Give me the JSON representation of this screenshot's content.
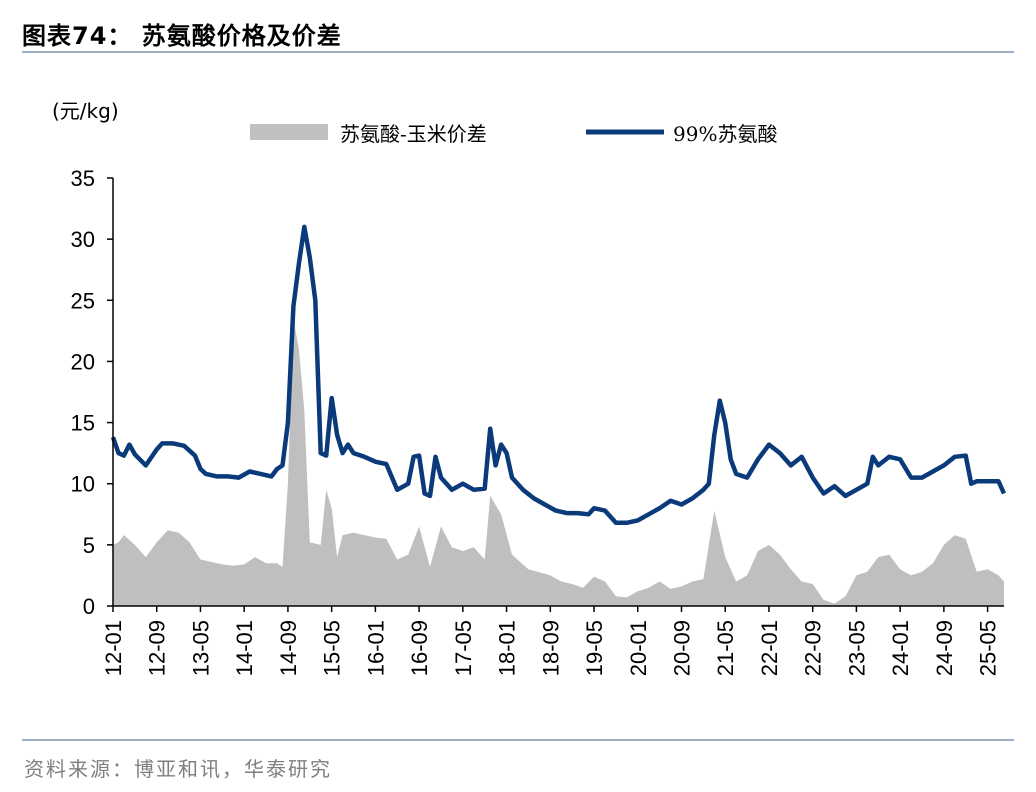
{
  "header": {
    "title": "图表74：  苏氨酸价格及价差"
  },
  "footer": {
    "source": "资料来源：博亚和讯，华泰研究"
  },
  "colors": {
    "line": "#0a3a7a",
    "area": "#bfbfbf",
    "rule": "#9aaebf"
  },
  "chart_data": {
    "type": "line",
    "unit_label": "(元/kg)",
    "ylim": [
      0,
      35
    ],
    "yticks": [
      0,
      5,
      10,
      15,
      20,
      25,
      30,
      35
    ],
    "xticks": [
      "12-01",
      "12-09",
      "13-05",
      "14-01",
      "14-09",
      "15-05",
      "16-01",
      "16-09",
      "17-05",
      "18-01",
      "18-09",
      "19-05",
      "20-01",
      "20-09",
      "21-05",
      "22-01",
      "22-09",
      "23-05",
      "24-01",
      "24-09",
      "25-05"
    ],
    "grid": false,
    "legend_position": "top",
    "series": [
      {
        "name": "苏氨酸-玉米价差",
        "kind": "area",
        "points": [
          [
            "12-01",
            5.0
          ],
          [
            "12-02",
            5.2
          ],
          [
            "12-03",
            5.8
          ],
          [
            "12-05",
            5.0
          ],
          [
            "12-07",
            4.0
          ],
          [
            "12-09",
            5.2
          ],
          [
            "12-11",
            6.2
          ],
          [
            "13-01",
            6.0
          ],
          [
            "13-03",
            5.2
          ],
          [
            "13-05",
            3.8
          ],
          [
            "13-07",
            3.6
          ],
          [
            "13-09",
            3.4
          ],
          [
            "13-11",
            3.3
          ],
          [
            "14-01",
            3.4
          ],
          [
            "14-03",
            4.0
          ],
          [
            "14-05",
            3.5
          ],
          [
            "14-07",
            3.5
          ],
          [
            "14-08",
            3.2
          ],
          [
            "14-09",
            10.0
          ],
          [
            "14-10",
            23.5
          ],
          [
            "14-11",
            21.0
          ],
          [
            "14-12",
            16.0
          ],
          [
            "15-01",
            5.2
          ],
          [
            "15-03",
            5.0
          ],
          [
            "15-04",
            9.5
          ],
          [
            "15-05",
            8.0
          ],
          [
            "15-06",
            4.0
          ],
          [
            "15-07",
            5.8
          ],
          [
            "15-09",
            6.0
          ],
          [
            "15-11",
            5.8
          ],
          [
            "16-01",
            5.6
          ],
          [
            "16-03",
            5.5
          ],
          [
            "16-05",
            3.8
          ],
          [
            "16-07",
            4.2
          ],
          [
            "16-09",
            6.5
          ],
          [
            "16-11",
            3.2
          ],
          [
            "17-01",
            6.5
          ],
          [
            "17-03",
            4.8
          ],
          [
            "17-05",
            4.5
          ],
          [
            "17-07",
            4.8
          ],
          [
            "17-09",
            3.8
          ],
          [
            "17-10",
            9.0
          ],
          [
            "17-12",
            7.5
          ],
          [
            "18-02",
            4.2
          ],
          [
            "18-05",
            3.0
          ],
          [
            "18-09",
            2.5
          ],
          [
            "18-11",
            2.0
          ],
          [
            "19-01",
            1.8
          ],
          [
            "19-03",
            1.5
          ],
          [
            "19-05",
            2.4
          ],
          [
            "19-07",
            2.0
          ],
          [
            "19-09",
            0.8
          ],
          [
            "19-11",
            0.7
          ],
          [
            "20-01",
            1.2
          ],
          [
            "20-03",
            1.5
          ],
          [
            "20-05",
            2.0
          ],
          [
            "20-07",
            1.4
          ],
          [
            "20-09",
            1.6
          ],
          [
            "20-11",
            2.0
          ],
          [
            "21-01",
            2.2
          ],
          [
            "21-03",
            7.8
          ],
          [
            "21-05",
            4.0
          ],
          [
            "21-07",
            2.0
          ],
          [
            "21-09",
            2.5
          ],
          [
            "21-11",
            4.5
          ],
          [
            "22-01",
            5.0
          ],
          [
            "22-03",
            4.2
          ],
          [
            "22-05",
            3.0
          ],
          [
            "22-07",
            2.0
          ],
          [
            "22-09",
            1.8
          ],
          [
            "22-11",
            0.5
          ],
          [
            "23-01",
            0.2
          ],
          [
            "23-03",
            0.8
          ],
          [
            "23-05",
            2.5
          ],
          [
            "23-07",
            2.8
          ],
          [
            "23-09",
            4.0
          ],
          [
            "23-11",
            4.2
          ],
          [
            "24-01",
            3.0
          ],
          [
            "24-03",
            2.5
          ],
          [
            "24-05",
            2.8
          ],
          [
            "24-07",
            3.5
          ],
          [
            "24-09",
            5.0
          ],
          [
            "24-11",
            5.8
          ],
          [
            "25-01",
            5.5
          ],
          [
            "25-03",
            2.8
          ],
          [
            "25-05",
            3.0
          ],
          [
            "25-07",
            2.5
          ],
          [
            "25-08",
            2.0
          ]
        ]
      },
      {
        "name": "99%苏氨酸",
        "kind": "line",
        "points": [
          [
            "12-01",
            13.8
          ],
          [
            "12-02",
            12.5
          ],
          [
            "12-03",
            12.3
          ],
          [
            "12-04",
            13.2
          ],
          [
            "12-05",
            12.4
          ],
          [
            "12-07",
            11.5
          ],
          [
            "12-09",
            12.8
          ],
          [
            "12-10",
            13.3
          ],
          [
            "12-12",
            13.3
          ],
          [
            "13-02",
            13.1
          ],
          [
            "13-04",
            12.3
          ],
          [
            "13-05",
            11.2
          ],
          [
            "13-06",
            10.8
          ],
          [
            "13-08",
            10.6
          ],
          [
            "13-10",
            10.6
          ],
          [
            "13-12",
            10.5
          ],
          [
            "14-02",
            11.0
          ],
          [
            "14-04",
            10.8
          ],
          [
            "14-06",
            10.6
          ],
          [
            "14-07",
            11.2
          ],
          [
            "14-08",
            11.5
          ],
          [
            "14-09",
            15.0
          ],
          [
            "14-10",
            24.5
          ],
          [
            "14-11",
            28.0
          ],
          [
            "14-12",
            31.0
          ],
          [
            "15-01",
            28.5
          ],
          [
            "15-02",
            25.0
          ],
          [
            "15-03",
            12.5
          ],
          [
            "15-04",
            12.3
          ],
          [
            "15-05",
            17.0
          ],
          [
            "15-06",
            14.0
          ],
          [
            "15-07",
            12.5
          ],
          [
            "15-08",
            13.2
          ],
          [
            "15-09",
            12.5
          ],
          [
            "15-11",
            12.2
          ],
          [
            "16-01",
            11.8
          ],
          [
            "16-03",
            11.6
          ],
          [
            "16-05",
            9.5
          ],
          [
            "16-07",
            10.0
          ],
          [
            "16-08",
            12.2
          ],
          [
            "16-09",
            12.3
          ],
          [
            "16-10",
            9.2
          ],
          [
            "16-11",
            9.0
          ],
          [
            "16-12",
            12.2
          ],
          [
            "17-01",
            10.5
          ],
          [
            "17-03",
            9.5
          ],
          [
            "17-05",
            10.0
          ],
          [
            "17-07",
            9.5
          ],
          [
            "17-09",
            9.6
          ],
          [
            "17-10",
            14.5
          ],
          [
            "17-11",
            11.5
          ],
          [
            "17-12",
            13.2
          ],
          [
            "18-01",
            12.5
          ],
          [
            "18-02",
            10.5
          ],
          [
            "18-04",
            9.5
          ],
          [
            "18-06",
            8.8
          ],
          [
            "18-08",
            8.3
          ],
          [
            "18-10",
            7.8
          ],
          [
            "18-12",
            7.6
          ],
          [
            "19-02",
            7.6
          ],
          [
            "19-04",
            7.5
          ],
          [
            "19-05",
            8.0
          ],
          [
            "19-07",
            7.8
          ],
          [
            "19-09",
            6.8
          ],
          [
            "19-11",
            6.8
          ],
          [
            "20-01",
            7.0
          ],
          [
            "20-03",
            7.5
          ],
          [
            "20-05",
            8.0
          ],
          [
            "20-07",
            8.6
          ],
          [
            "20-09",
            8.3
          ],
          [
            "20-11",
            8.8
          ],
          [
            "21-01",
            9.5
          ],
          [
            "21-02",
            10.0
          ],
          [
            "21-03",
            14.0
          ],
          [
            "21-04",
            16.8
          ],
          [
            "21-05",
            15.0
          ],
          [
            "21-06",
            12.0
          ],
          [
            "21-07",
            10.8
          ],
          [
            "21-09",
            10.5
          ],
          [
            "21-11",
            12.0
          ],
          [
            "22-01",
            13.2
          ],
          [
            "22-03",
            12.5
          ],
          [
            "22-05",
            11.5
          ],
          [
            "22-07",
            12.2
          ],
          [
            "22-09",
            10.5
          ],
          [
            "22-11",
            9.2
          ],
          [
            "23-01",
            9.8
          ],
          [
            "23-03",
            9.0
          ],
          [
            "23-05",
            9.5
          ],
          [
            "23-07",
            10.0
          ],
          [
            "23-08",
            12.2
          ],
          [
            "23-09",
            11.5
          ],
          [
            "23-11",
            12.2
          ],
          [
            "24-01",
            12.0
          ],
          [
            "24-03",
            10.5
          ],
          [
            "24-05",
            10.5
          ],
          [
            "24-07",
            11.0
          ],
          [
            "24-09",
            11.5
          ],
          [
            "24-11",
            12.2
          ],
          [
            "25-01",
            12.3
          ],
          [
            "25-02",
            10.0
          ],
          [
            "25-03",
            10.2
          ],
          [
            "25-05",
            10.2
          ],
          [
            "25-07",
            10.2
          ],
          [
            "25-08",
            9.2
          ]
        ]
      }
    ]
  }
}
